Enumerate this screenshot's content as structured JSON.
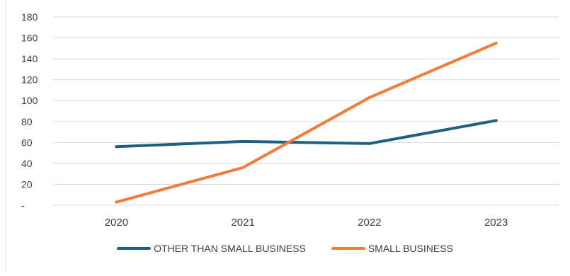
{
  "chart_data": {
    "type": "line",
    "categories": [
      "2020",
      "2021",
      "2022",
      "2023"
    ],
    "series": [
      {
        "name": "OTHER THAN SMALL BUSINESS",
        "color": "#1f5f7f",
        "values": [
          56,
          61,
          59,
          81
        ]
      },
      {
        "name": "SMALL BUSINESS",
        "color": "#ee7d3a",
        "values": [
          3,
          36,
          103,
          155
        ]
      }
    ],
    "yticks": [
      {
        "value": 0,
        "label": "-"
      },
      {
        "value": 20,
        "label": "20"
      },
      {
        "value": 40,
        "label": "40"
      },
      {
        "value": 60,
        "label": "60"
      },
      {
        "value": 80,
        "label": "80"
      },
      {
        "value": 100,
        "label": "100"
      },
      {
        "value": 120,
        "label": "120"
      },
      {
        "value": 140,
        "label": "140"
      },
      {
        "value": 160,
        "label": "160"
      },
      {
        "value": 180,
        "label": "180"
      }
    ],
    "ylim": [
      0,
      180
    ],
    "grid": true,
    "legend_position": "bottom"
  }
}
